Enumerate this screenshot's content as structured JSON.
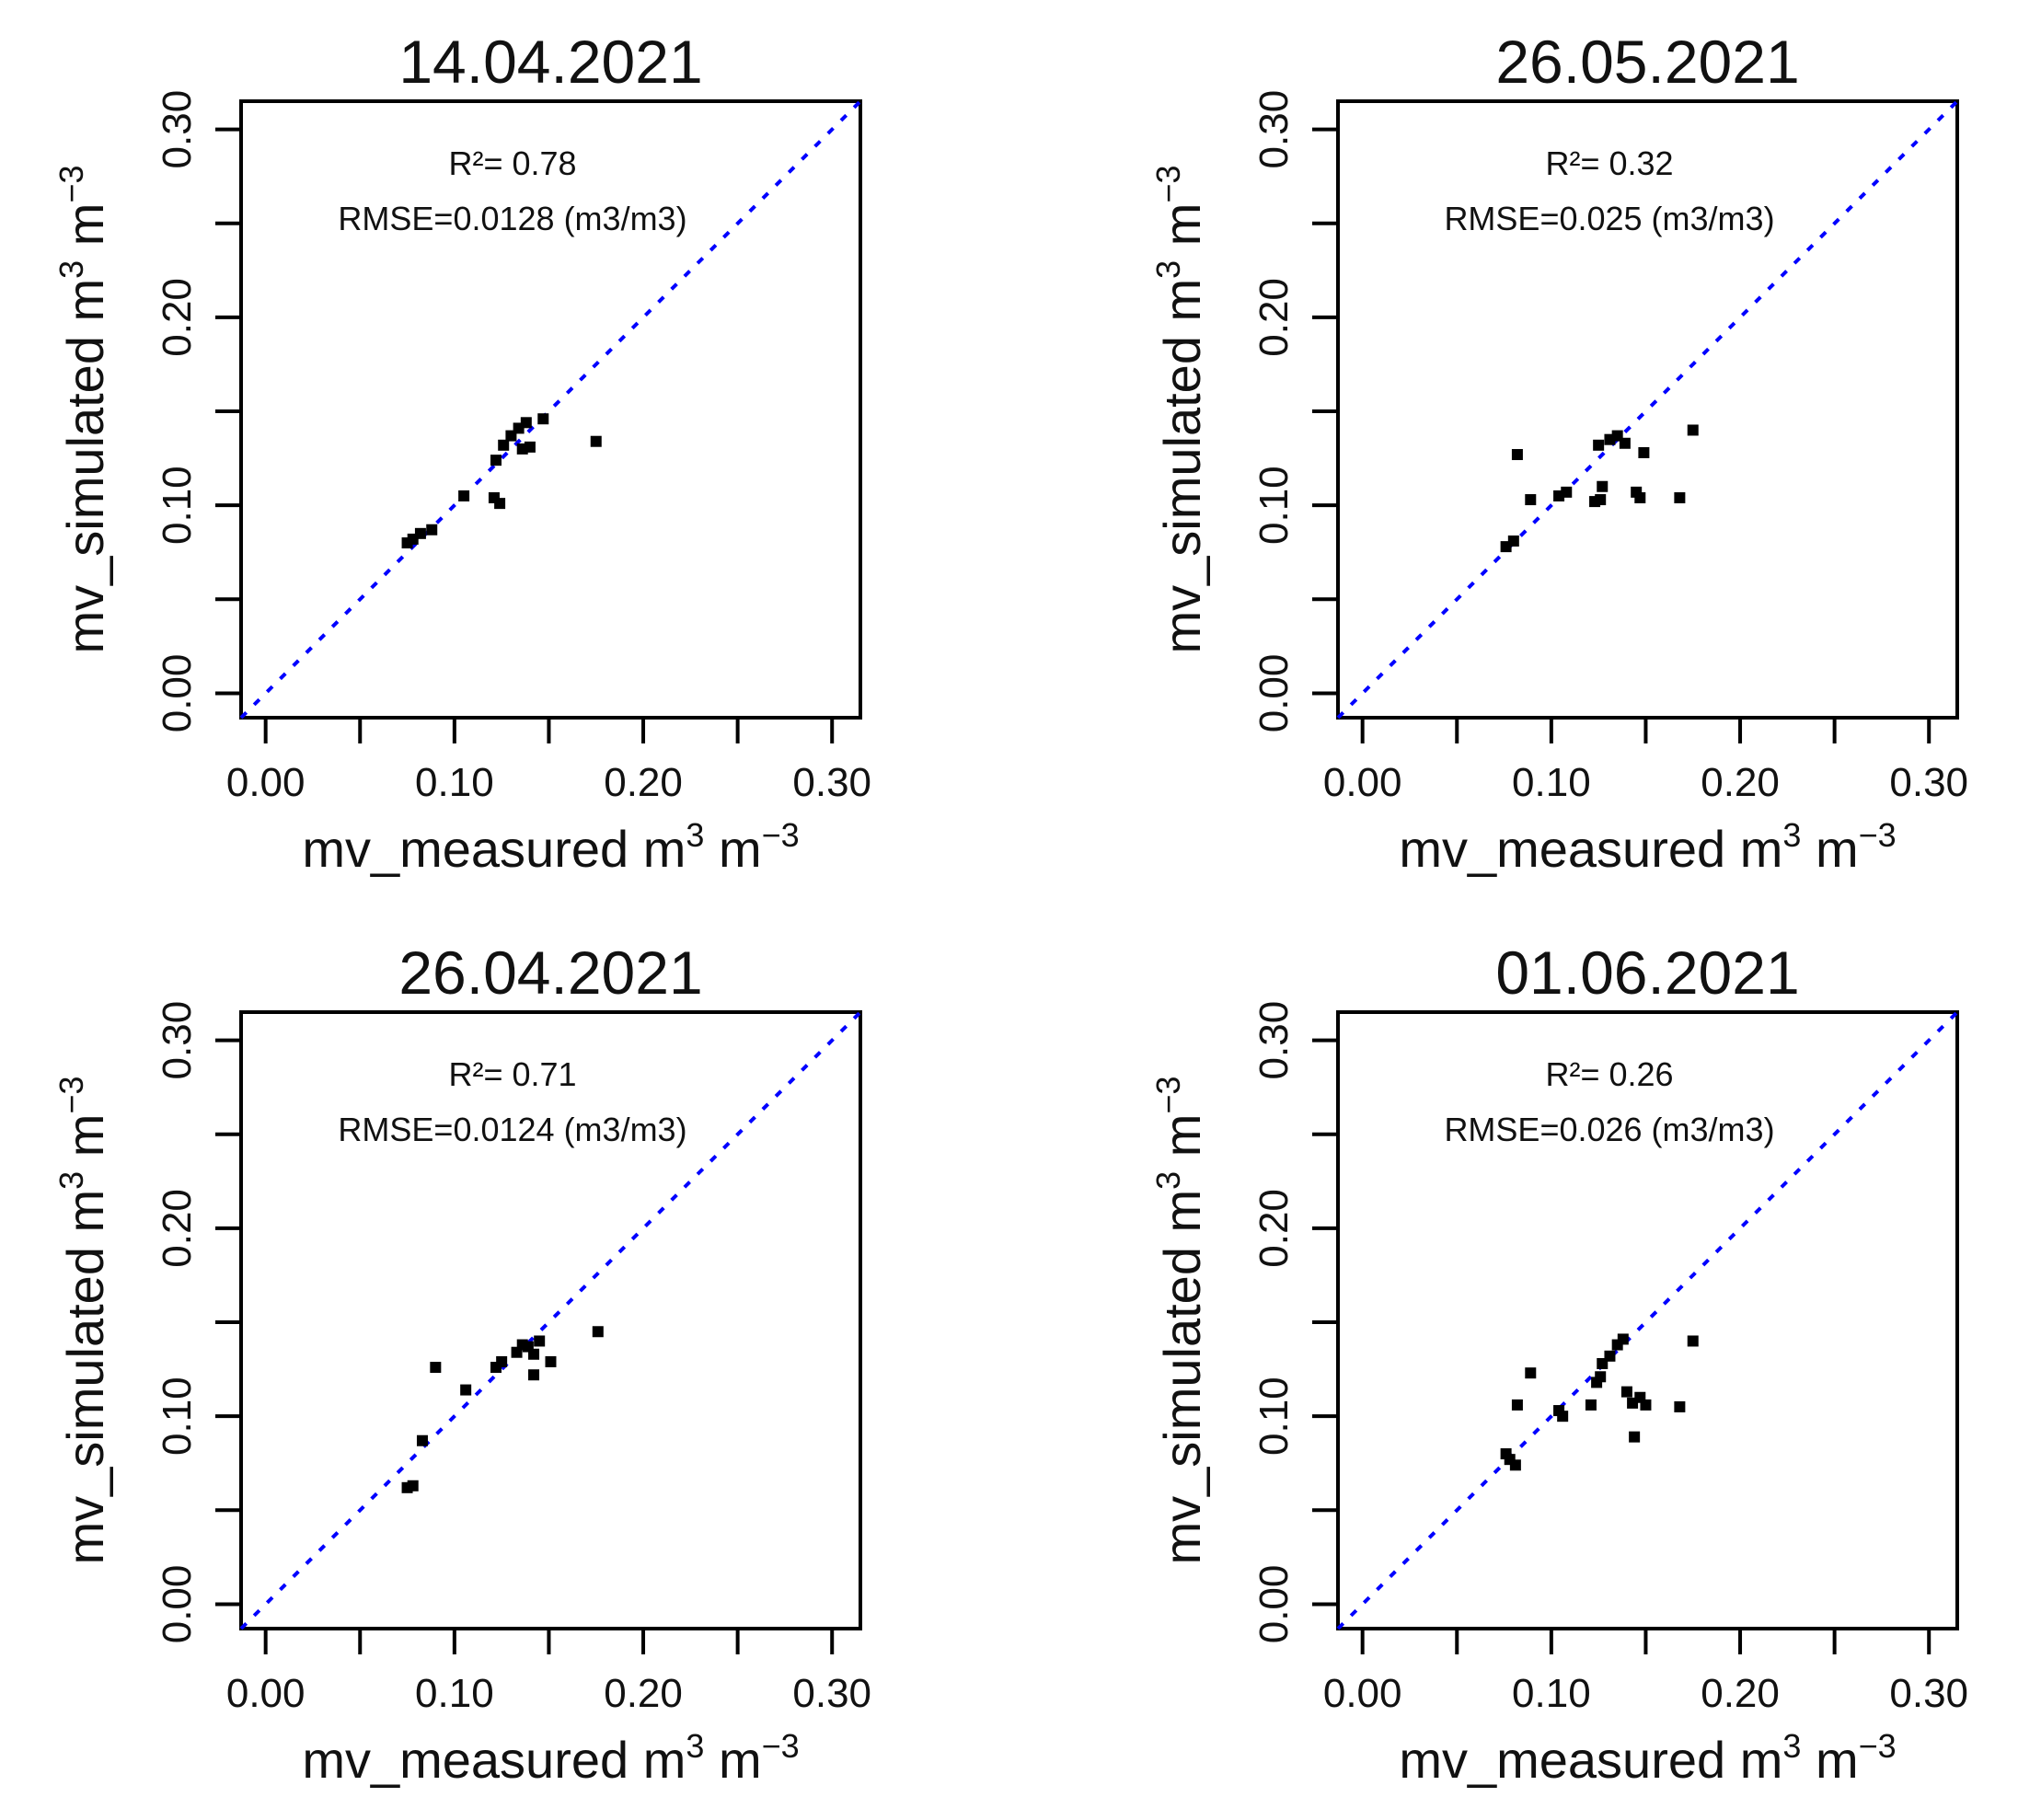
{
  "chart_data": [
    {
      "type": "scatter",
      "title": "14.04.2021",
      "xlabel": "mv_measured m",
      "ylabel": "mv_simulated m",
      "unit_sup_1": "3",
      "unit_mid": " m",
      "unit_sup_2": "−3",
      "xlim": [
        -0.013,
        0.315
      ],
      "ylim": [
        -0.013,
        0.315
      ],
      "xticks": [
        "0.00",
        "0.10",
        "0.20",
        "0.30"
      ],
      "yticks": [
        "0.00",
        "0.10",
        "0.20",
        "0.30"
      ],
      "annotation": {
        "r2": "R²= 0.78",
        "rmse": "RMSE=0.0128 (m3/m3)"
      },
      "identity_line_color": "#0000ff",
      "point_color": "#000000",
      "points": [
        [
          0.075,
          0.08
        ],
        [
          0.078,
          0.082
        ],
        [
          0.082,
          0.085
        ],
        [
          0.088,
          0.087
        ],
        [
          0.105,
          0.105
        ],
        [
          0.121,
          0.104
        ],
        [
          0.124,
          0.101
        ],
        [
          0.122,
          0.124
        ],
        [
          0.126,
          0.132
        ],
        [
          0.13,
          0.137
        ],
        [
          0.134,
          0.141
        ],
        [
          0.138,
          0.144
        ],
        [
          0.14,
          0.131
        ],
        [
          0.136,
          0.13
        ],
        [
          0.147,
          0.146
        ],
        [
          0.175,
          0.134
        ]
      ]
    },
    {
      "type": "scatter",
      "title": "26.05.2021",
      "xlabel": "mv_measured m",
      "ylabel": "mv_simulated m",
      "unit_sup_1": "3",
      "unit_mid": " m",
      "unit_sup_2": "−3",
      "xlim": [
        -0.013,
        0.315
      ],
      "ylim": [
        -0.013,
        0.315
      ],
      "xticks": [
        "0.00",
        "0.10",
        "0.20",
        "0.30"
      ],
      "yticks": [
        "0.00",
        "0.10",
        "0.20",
        "0.30"
      ],
      "annotation": {
        "r2": "R²= 0.32",
        "rmse": "RMSE=0.025  (m3/m3)"
      },
      "identity_line_color": "#0000ff",
      "point_color": "#000000",
      "points": [
        [
          0.076,
          0.078
        ],
        [
          0.08,
          0.081
        ],
        [
          0.082,
          0.127
        ],
        [
          0.089,
          0.103
        ],
        [
          0.104,
          0.105
        ],
        [
          0.108,
          0.107
        ],
        [
          0.123,
          0.102
        ],
        [
          0.126,
          0.103
        ],
        [
          0.127,
          0.11
        ],
        [
          0.125,
          0.132
        ],
        [
          0.131,
          0.135
        ],
        [
          0.135,
          0.137
        ],
        [
          0.139,
          0.133
        ],
        [
          0.145,
          0.107
        ],
        [
          0.147,
          0.104
        ],
        [
          0.149,
          0.128
        ],
        [
          0.168,
          0.104
        ],
        [
          0.175,
          0.14
        ]
      ]
    },
    {
      "type": "scatter",
      "title": "26.04.2021",
      "xlabel": "mv_measured m",
      "ylabel": "mv_simulated m",
      "unit_sup_1": "3",
      "unit_mid": " m",
      "unit_sup_2": "−3",
      "xlim": [
        -0.013,
        0.315
      ],
      "ylim": [
        -0.013,
        0.315
      ],
      "xticks": [
        "0.00",
        "0.10",
        "0.20",
        "0.30"
      ],
      "yticks": [
        "0.00",
        "0.10",
        "0.20",
        "0.30"
      ],
      "annotation": {
        "r2": "R²= 0.71",
        "rmse": "RMSE=0.0124 (m3/m3)"
      },
      "identity_line_color": "#0000ff",
      "point_color": "#000000",
      "points": [
        [
          0.075,
          0.062
        ],
        [
          0.078,
          0.063
        ],
        [
          0.083,
          0.087
        ],
        [
          0.09,
          0.126
        ],
        [
          0.106,
          0.114
        ],
        [
          0.122,
          0.126
        ],
        [
          0.125,
          0.129
        ],
        [
          0.133,
          0.134
        ],
        [
          0.136,
          0.138
        ],
        [
          0.139,
          0.137
        ],
        [
          0.142,
          0.133
        ],
        [
          0.142,
          0.122
        ],
        [
          0.145,
          0.14
        ],
        [
          0.151,
          0.129
        ],
        [
          0.176,
          0.145
        ]
      ]
    },
    {
      "type": "scatter",
      "title": "01.06.2021",
      "xlabel": "mv_measured m",
      "ylabel": "mv_simulated m",
      "unit_sup_1": "3",
      "unit_mid": " m",
      "unit_sup_2": "−3",
      "xlim": [
        -0.013,
        0.315
      ],
      "ylim": [
        -0.013,
        0.315
      ],
      "xticks": [
        "0.00",
        "0.10",
        "0.20",
        "0.30"
      ],
      "yticks": [
        "0.00",
        "0.10",
        "0.20",
        "0.30"
      ],
      "annotation": {
        "r2": "R²= 0.26",
        "rmse": "RMSE=0.026 (m3/m3)"
      },
      "identity_line_color": "#0000ff",
      "point_color": "#000000",
      "points": [
        [
          0.076,
          0.08
        ],
        [
          0.078,
          0.077
        ],
        [
          0.081,
          0.074
        ],
        [
          0.082,
          0.106
        ],
        [
          0.089,
          0.123
        ],
        [
          0.104,
          0.103
        ],
        [
          0.106,
          0.1
        ],
        [
          0.121,
          0.106
        ],
        [
          0.124,
          0.118
        ],
        [
          0.126,
          0.121
        ],
        [
          0.127,
          0.128
        ],
        [
          0.131,
          0.132
        ],
        [
          0.135,
          0.138
        ],
        [
          0.138,
          0.141
        ],
        [
          0.14,
          0.113
        ],
        [
          0.143,
          0.107
        ],
        [
          0.144,
          0.089
        ],
        [
          0.147,
          0.11
        ],
        [
          0.15,
          0.106
        ],
        [
          0.168,
          0.105
        ],
        [
          0.175,
          0.14
        ]
      ]
    }
  ]
}
